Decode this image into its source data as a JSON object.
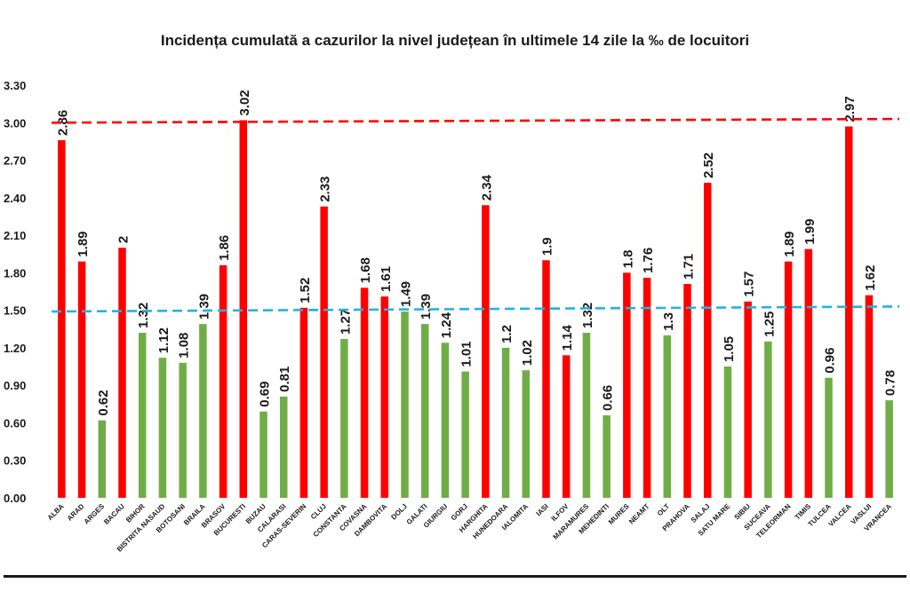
{
  "chart_data": {
    "type": "bar",
    "title": "Incidența cumulată a cazurilor la nivel județean în ultimele 14 zile la ‰ de locuitori",
    "xlabel": "",
    "ylabel": "",
    "ylim": [
      0,
      3.3
    ],
    "yticks": [
      "0.00",
      "0.30",
      "0.60",
      "0.90",
      "1.20",
      "1.50",
      "1.80",
      "2.10",
      "2.40",
      "2.70",
      "3.00",
      "3.30"
    ],
    "grid": false,
    "legend": "none",
    "categories": [
      "ALBA",
      "ARAD",
      "ARGES",
      "BACAU",
      "BIHOR",
      "BISTRITA NASAUD",
      "BOTOSANI",
      "BRAILA",
      "BRASOV",
      "BUCURESTI",
      "BUZAU",
      "CALARASI",
      "CARAS-SEVERIN",
      "CLUJ",
      "CONSTANTA",
      "COVASNA",
      "DAMBOVITA",
      "DOLJ",
      "GALATI",
      "GIURGIU",
      "GORJ",
      "HARGHITA",
      "HUNEDOARA",
      "IALOMITA",
      "IASI",
      "ILFOV",
      "MARAMURES",
      "MEHEDINTI",
      "MURES",
      "NEAMT",
      "OLT",
      "PRAHOVA",
      "SALAJ",
      "SATU MARE",
      "SIBIU",
      "SUCEAVA",
      "TELEORMAN",
      "TIMIS",
      "TULCEA",
      "VALCEA",
      "VASLUI",
      "VRANCEA"
    ],
    "values": [
      2.86,
      1.89,
      0.62,
      2,
      1.32,
      1.12,
      1.08,
      1.39,
      1.86,
      3.02,
      0.69,
      0.81,
      1.52,
      2.33,
      1.27,
      1.68,
      1.61,
      1.49,
      1.39,
      1.24,
      1.01,
      2.34,
      1.2,
      1.02,
      1.9,
      1.14,
      1.32,
      0.66,
      1.8,
      1.76,
      1.3,
      1.71,
      2.52,
      1.05,
      1.57,
      1.25,
      1.89,
      1.99,
      0.96,
      2.97,
      1.62,
      0.78
    ],
    "value_labels": [
      "2.86",
      "1.89",
      "0.62",
      "2",
      "1.32",
      "1.12",
      "1.08",
      "1.39",
      "1.86",
      "3.02",
      "0.69",
      "0.81",
      "1.52",
      "2.33",
      "1.27",
      "1.68",
      "1.61",
      "1.49",
      "1.39",
      "1.24",
      "1.01",
      "2.34",
      "1.2",
      "1.02",
      "1.9",
      "1.14",
      "1.32",
      "0.66",
      "1.8",
      "1.76",
      "1.3",
      "1.71",
      "2.52",
      "1.05",
      "1.57",
      "1.25",
      "1.89",
      "1.99",
      "0.96",
      "2.97",
      "1.62",
      "0.78"
    ],
    "colors": [
      "red",
      "red",
      "green",
      "red",
      "green",
      "green",
      "green",
      "green",
      "red",
      "red",
      "green",
      "green",
      "red",
      "red",
      "green",
      "red",
      "red",
      "green",
      "green",
      "green",
      "green",
      "red",
      "green",
      "green",
      "red",
      "red",
      "green",
      "green",
      "red",
      "red",
      "green",
      "red",
      "red",
      "green",
      "red",
      "green",
      "red",
      "red",
      "green",
      "red",
      "red",
      "green"
    ],
    "palette": {
      "red": "#ff0000",
      "green": "#70ad47"
    },
    "reference_lines": [
      {
        "from": 3.0,
        "to": 3.03,
        "color": "#ff0000",
        "style": "dashed"
      },
      {
        "from": 1.49,
        "to": 1.53,
        "color": "#1fb4e3",
        "style": "dashed"
      }
    ]
  }
}
